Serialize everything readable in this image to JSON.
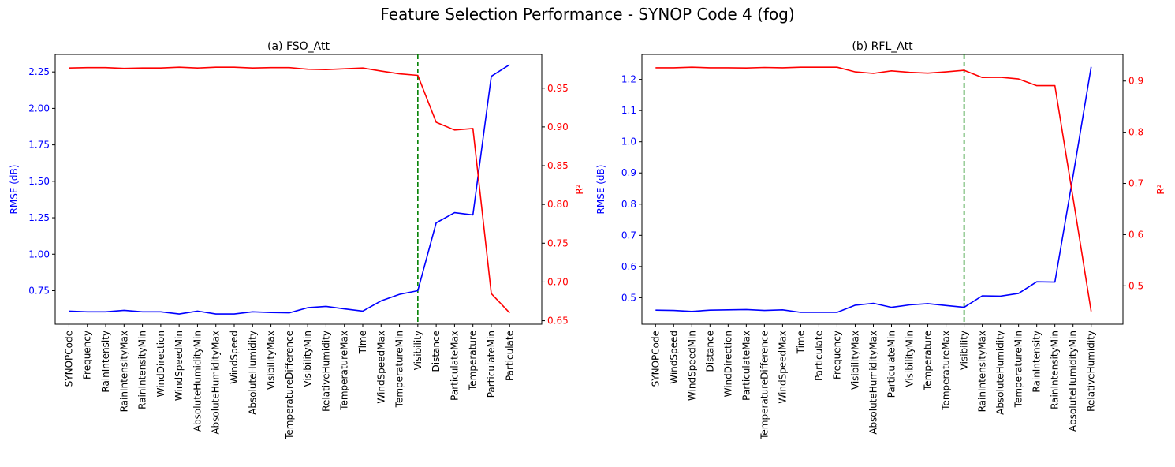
{
  "figure": {
    "title": "Feature Selection Performance - SYNOP Code 4 (fog)"
  },
  "chart_data": [
    {
      "type": "line",
      "title": "(a) FSO_Att",
      "ylabel": "RMSE (dB)",
      "y2label": "R²",
      "categories": [
        "SYNOPCode",
        "Frequency",
        "RainIntensity",
        "RainIntensityMax",
        "RainIntensityMin",
        "WindDirection",
        "WindSpeedMin",
        "AbsoluteHumidityMin",
        "AbsoluteHumidityMax",
        "WindSpeed",
        "AbsoluteHumidity",
        "VisibilityMax",
        "TemperatureDifference",
        "VisibilityMin",
        "RelativeHumidity",
        "TemperatureMax",
        "Time",
        "WindSpeedMax",
        "TemperatureMin",
        "Visibility",
        "Distance",
        "ParticulateMax",
        "Temperature",
        "ParticulateMin",
        "Particulate"
      ],
      "series": [
        {
          "name": "RMSE (dB)",
          "axis": "left",
          "color": "#0000ff",
          "values": [
            0.61,
            0.605,
            0.605,
            0.615,
            0.605,
            0.605,
            0.59,
            0.61,
            0.59,
            0.59,
            0.605,
            0.6,
            0.598,
            0.633,
            0.642,
            0.625,
            0.61,
            0.68,
            0.725,
            0.75,
            1.215,
            1.285,
            1.27,
            2.22,
            2.3
          ]
        },
        {
          "name": "R²",
          "axis": "right",
          "color": "#ff0000",
          "values": [
            0.976,
            0.9765,
            0.9765,
            0.9755,
            0.976,
            0.976,
            0.977,
            0.976,
            0.977,
            0.977,
            0.976,
            0.9765,
            0.9765,
            0.9745,
            0.974,
            0.975,
            0.976,
            0.972,
            0.9685,
            0.9665,
            0.906,
            0.896,
            0.898,
            0.685,
            0.66
          ]
        }
      ],
      "vline": {
        "category": "Visibility",
        "color": "#008000"
      },
      "ylim": [
        0.52,
        2.37
      ],
      "yticks": [
        0.75,
        1.0,
        1.25,
        1.5,
        1.75,
        2.0,
        2.25
      ],
      "ytick_labels": [
        "0.75",
        "1.00",
        "1.25",
        "1.50",
        "1.75",
        "2.00",
        "2.25"
      ],
      "y2lim": [
        0.6455,
        0.9935
      ],
      "y2ticks": [
        0.65,
        0.7,
        0.75,
        0.8,
        0.85,
        0.9,
        0.95
      ],
      "y2tick_labels": [
        "0.65",
        "0.70",
        "0.75",
        "0.80",
        "0.85",
        "0.90",
        "0.95"
      ],
      "grid": false
    },
    {
      "type": "line",
      "title": "(b) RFL_Att",
      "ylabel": "RMSE (dB)",
      "y2label": "R²",
      "categories": [
        "SYNOPCode",
        "WindSpeed",
        "WindSpeedMin",
        "Distance",
        "WindDirection",
        "ParticulateMax",
        "TemperatureDifference",
        "WindSpeedMax",
        "Time",
        "Particulate",
        "Frequency",
        "VisibilityMax",
        "AbsoluteHumidityMax",
        "ParticulateMin",
        "VisibilityMin",
        "Temperature",
        "TemperatureMax",
        "Visibility",
        "RainIntensityMax",
        "AbsoluteHumidity",
        "TemperatureMin",
        "RainIntensity",
        "RainIntensityMin",
        "AbsoluteHumidityMin",
        "RelativeHumidity"
      ],
      "series": [
        {
          "name": "RMSE (dB)",
          "axis": "left",
          "color": "#0000ff",
          "values": [
            0.46,
            0.459,
            0.456,
            0.46,
            0.461,
            0.462,
            0.459,
            0.461,
            0.453,
            0.453,
            0.453,
            0.476,
            0.482,
            0.469,
            0.477,
            0.481,
            0.475,
            0.469,
            0.506,
            0.505,
            0.514,
            0.551,
            0.55,
            0.89,
            1.24
          ]
        },
        {
          "name": "R²",
          "axis": "right",
          "color": "#ff0000",
          "values": [
            0.926,
            0.926,
            0.927,
            0.926,
            0.926,
            0.9255,
            0.9265,
            0.926,
            0.927,
            0.927,
            0.927,
            0.918,
            0.915,
            0.92,
            0.917,
            0.9155,
            0.918,
            0.921,
            0.907,
            0.9075,
            0.904,
            0.891,
            0.891,
            0.672,
            0.45
          ]
        }
      ],
      "vline": {
        "category": "Visibility",
        "color": "#008000"
      },
      "ylim": [
        0.415,
        1.28
      ],
      "yticks": [
        0.5,
        0.6,
        0.7,
        0.8,
        0.9,
        1.0,
        1.1,
        1.2
      ],
      "ytick_labels": [
        "0.5",
        "0.6",
        "0.7",
        "0.8",
        "0.9",
        "1.0",
        "1.1",
        "1.2"
      ],
      "y2lim": [
        0.425,
        0.952
      ],
      "y2ticks": [
        0.5,
        0.6,
        0.7,
        0.8,
        0.9
      ],
      "y2tick_labels": [
        "0.5",
        "0.6",
        "0.7",
        "0.8",
        "0.9"
      ],
      "grid": false
    }
  ]
}
